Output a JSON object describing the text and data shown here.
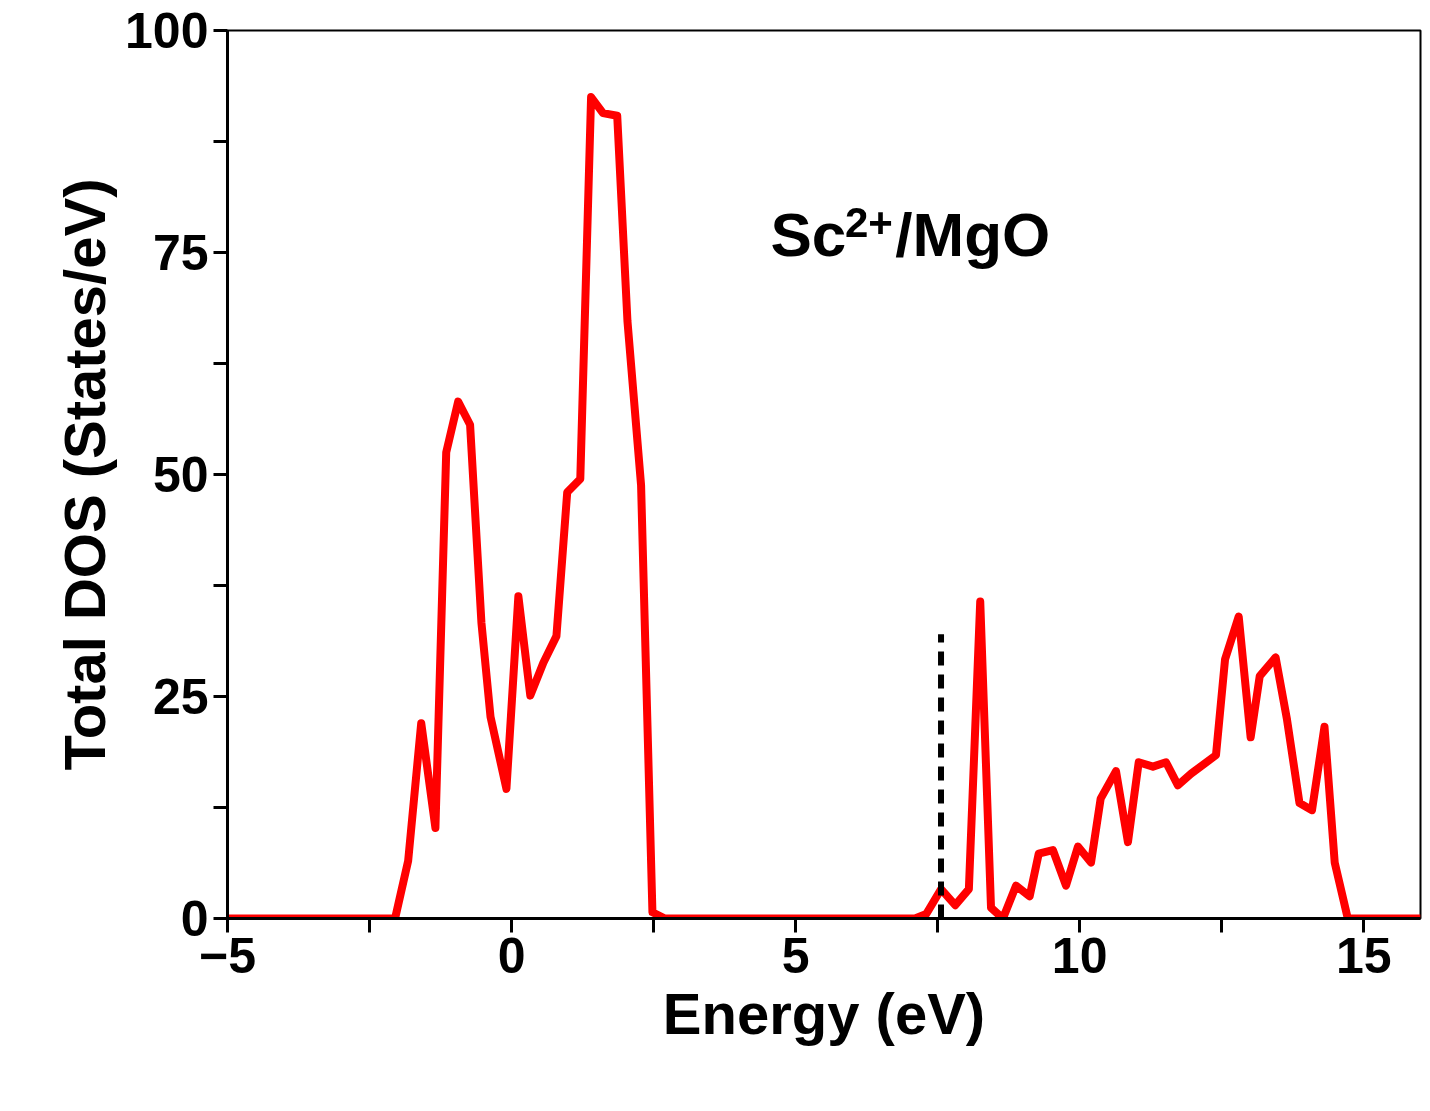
{
  "chart_data": {
    "type": "line",
    "xlabel": "Energy (eV)",
    "ylabel": "Total DOS (States/eV)",
    "annotations": [
      "Sc$^{2+}$/MgO"
    ],
    "x": [
      -5,
      -2.05,
      -1.82,
      -1.59,
      -1.34,
      -1.15,
      -0.94,
      -0.73,
      -0.53,
      -0.37,
      -0.09,
      0.12,
      0.33,
      0.56,
      0.79,
      0.98,
      1.21,
      1.4,
      1.61,
      1.86,
      2.04,
      2.28,
      2.48,
      2.7,
      7.1,
      7.3,
      7.56,
      7.81,
      8.05,
      8.25,
      8.44,
      8.65,
      8.88,
      9.12,
      9.28,
      9.53,
      9.76,
      9.97,
      10.2,
      10.37,
      10.64,
      10.85,
      11.04,
      11.29,
      11.52,
      11.73,
      11.96,
      12.4,
      12.56,
      12.8,
      13.01,
      13.17,
      13.45,
      13.65,
      13.87,
      14.09,
      14.31,
      14.49,
      14.72,
      16
    ],
    "series": [
      {
        "color": "#ff0000",
        "values": [
          0,
          0,
          6.5,
          22,
          10.2,
          52.5,
          58.2,
          55.6,
          33.3,
          22.7,
          14.6,
          36.3,
          25.1,
          28.8,
          31.8,
          48,
          49.5,
          92.5,
          90.7,
          90.4,
          67.3,
          48.8,
          0.7,
          0,
          0,
          0.5,
          3.3,
          1.5,
          3.3,
          35.7,
          1.2,
          0,
          3.7,
          2.5,
          7.3,
          7.7,
          3.7,
          8.1,
          6.3,
          13.5,
          16.6,
          8.6,
          17.6,
          17.1,
          17.6,
          15,
          16.3,
          18.4,
          29.2,
          34,
          20.4,
          27.3,
          29.4,
          22.4,
          13,
          12.2,
          21.6,
          6.3,
          0,
          0
        ]
      },
      {
        "type": "line",
        "color": "#000000",
        "line_style": "dashed",
        "x": [
          7.56,
          7.56
        ],
        "values": [
          0,
          32
        ]
      }
    ],
    "line_style": "solid",
    "marker": "none",
    "grid": false,
    "xlim": [
      -5,
      16
    ],
    "ylim": [
      0,
      100
    ],
    "xticks": [
      -5,
      {
        "value": -2.5,
        "label": null
      },
      0,
      {
        "value": 2.5,
        "label": null
      },
      5,
      {
        "value": 7.5,
        "label": null
      },
      10,
      {
        "value": 12.5,
        "label": null
      },
      15
    ],
    "yticks": [
      0,
      {
        "value": 12.5,
        "label": null
      },
      25,
      {
        "value": 37.5,
        "label": null
      },
      50,
      {
        "value": 62.5,
        "label": null
      },
      75,
      {
        "value": 87.5,
        "label": null
      },
      100
    ]
  }
}
